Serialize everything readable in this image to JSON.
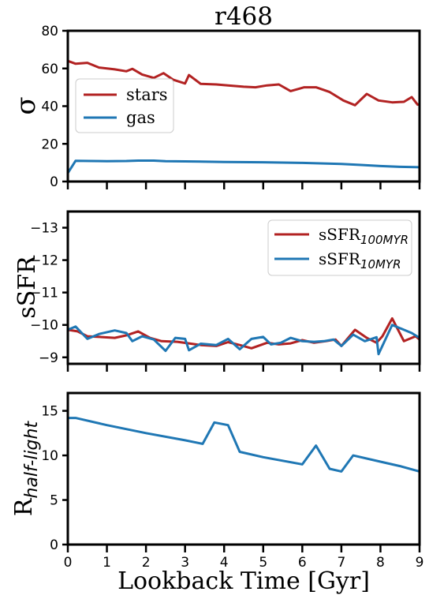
{
  "title": "r468",
  "xlabel": "Lookback Time [Gyr]",
  "x_ticks": [
    "0",
    "1",
    "2",
    "3",
    "4",
    "5",
    "6",
    "7",
    "8",
    "9"
  ],
  "colors": {
    "stars": "#b22222",
    "gas": "#1f77b4",
    "axis": "#000000"
  },
  "chart_data": [
    {
      "type": "line",
      "ylabel": "σ",
      "xlim": [
        0,
        9
      ],
      "ylim": [
        0,
        80
      ],
      "y_ticks": [
        "0",
        "20",
        "40",
        "60",
        "80"
      ],
      "legend": {
        "placement": "center-left",
        "entries": [
          "stars",
          "gas"
        ]
      },
      "series": [
        {
          "name": "stars",
          "color": "#b22222",
          "x": [
            0,
            0.2,
            0.5,
            0.8,
            1.2,
            1.5,
            1.65,
            1.9,
            2.2,
            2.45,
            2.7,
            3.0,
            3.1,
            3.4,
            3.8,
            4.1,
            4.5,
            4.8,
            5.1,
            5.4,
            5.7,
            6.05,
            6.35,
            6.7,
            7.05,
            7.35,
            7.65,
            7.95,
            8.3,
            8.6,
            8.8,
            8.95,
            9.0
          ],
          "values": [
            64,
            62.5,
            63,
            60.5,
            59.5,
            58.5,
            59.8,
            56.8,
            55,
            57.5,
            54,
            52,
            56.5,
            51.8,
            51.5,
            51,
            50.3,
            50,
            51,
            51.5,
            48,
            50,
            50,
            47.5,
            43,
            40.5,
            46.5,
            43,
            42,
            42.3,
            44.8,
            40.8,
            41
          ]
        },
        {
          "name": "gas",
          "color": "#1f77b4",
          "x": [
            0,
            0.2,
            0.6,
            1,
            1.5,
            1.8,
            2.2,
            2.5,
            3.0,
            4.0,
            5.0,
            6.0,
            7.0,
            7.5,
            8.0,
            8.5,
            9.0
          ],
          "values": [
            4.5,
            11,
            10.9,
            10.8,
            10.9,
            11.1,
            11.1,
            10.8,
            10.7,
            10.4,
            10.2,
            9.9,
            9.3,
            8.8,
            8.2,
            7.8,
            7.6
          ]
        }
      ]
    },
    {
      "type": "line",
      "ylabel": "sSFR",
      "xlim": [
        0,
        9
      ],
      "ylim": [
        -8.8,
        -13.5
      ],
      "y_ticks": [
        "−13",
        "−12",
        "−11",
        "−10",
        "−9"
      ],
      "legend": {
        "placement": "top-right",
        "entries": [
          "sSFR100MYR",
          "sSFR10MYR"
        ]
      },
      "series": [
        {
          "name": "sSFR100MYR",
          "color": "#b22222",
          "x": [
            0,
            0.25,
            0.5,
            0.8,
            1.2,
            1.5,
            1.8,
            2.1,
            2.4,
            2.8,
            3.1,
            3.4,
            3.8,
            4.1,
            4.4,
            4.7,
            5.1,
            5.4,
            5.7,
            6.0,
            6.3,
            6.6,
            6.85,
            7.0,
            7.35,
            7.65,
            7.9,
            8.05,
            8.3,
            8.6,
            8.9,
            9.0
          ],
          "values": [
            -9.85,
            -9.8,
            -9.65,
            -9.63,
            -9.6,
            -9.68,
            -9.8,
            -9.6,
            -9.5,
            -9.48,
            -9.43,
            -9.38,
            -9.35,
            -9.47,
            -9.38,
            -9.28,
            -9.45,
            -9.4,
            -9.43,
            -9.53,
            -9.45,
            -9.5,
            -9.55,
            -9.35,
            -9.85,
            -9.6,
            -9.45,
            -9.65,
            -10.2,
            -9.5,
            -9.65,
            -9.55
          ]
        },
        {
          "name": "sSFR10MYR",
          "color": "#1f77b4",
          "x": [
            0,
            0.2,
            0.5,
            0.8,
            1.2,
            1.5,
            1.65,
            1.9,
            2.2,
            2.5,
            2.75,
            3.0,
            3.1,
            3.4,
            3.8,
            4.1,
            4.4,
            4.7,
            5.0,
            5.2,
            5.45,
            5.7,
            6.0,
            6.3,
            6.55,
            6.8,
            7.0,
            7.3,
            7.6,
            7.9,
            7.95,
            8.3,
            8.6,
            8.8,
            9.0
          ],
          "values": [
            -9.85,
            -9.95,
            -9.57,
            -9.72,
            -9.83,
            -9.75,
            -9.5,
            -9.65,
            -9.55,
            -9.2,
            -9.6,
            -9.57,
            -9.22,
            -9.42,
            -9.38,
            -9.57,
            -9.25,
            -9.57,
            -9.63,
            -9.4,
            -9.45,
            -9.6,
            -9.5,
            -9.48,
            -9.5,
            -9.55,
            -9.35,
            -9.7,
            -9.5,
            -9.62,
            -9.1,
            -10.0,
            -9.85,
            -9.75,
            -9.6
          ]
        }
      ]
    },
    {
      "type": "line",
      "ylabel": "R_half-light",
      "xlim": [
        0,
        9
      ],
      "ylim": [
        0,
        17
      ],
      "y_ticks": [
        "0",
        "5",
        "10",
        "15"
      ],
      "series": [
        {
          "name": "",
          "color": "#1f77b4",
          "x": [
            0,
            0.2,
            1,
            2,
            3,
            3.45,
            3.75,
            4.1,
            4.4,
            5,
            6,
            6.35,
            6.7,
            7.0,
            7.3,
            8.0,
            8.5,
            9.0
          ],
          "values": [
            14.2,
            14.2,
            13.4,
            12.5,
            11.7,
            11.3,
            13.7,
            13.4,
            10.4,
            9.8,
            9.0,
            11.1,
            8.5,
            8.2,
            10.0,
            9.3,
            8.8,
            8.2
          ]
        }
      ]
    }
  ]
}
